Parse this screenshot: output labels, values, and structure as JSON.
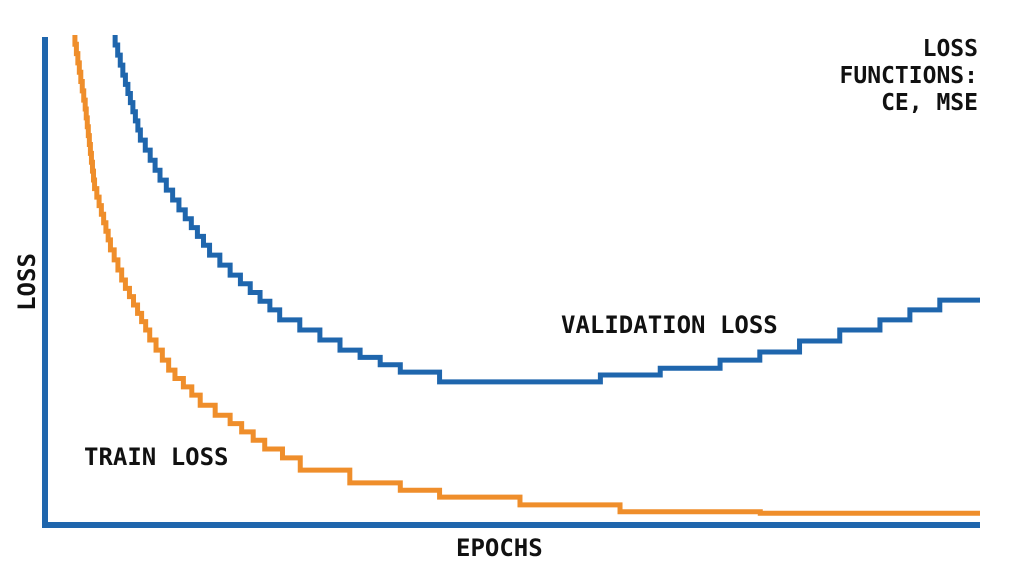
{
  "chart_data": {
    "type": "line",
    "title": "",
    "annotation": "LOSS FUNCTIONS: CE, MSE",
    "xlabel": "EPOCHS",
    "ylabel": "LOSS",
    "xlim": [
      0,
      100
    ],
    "ylim": [
      0,
      1
    ],
    "grid": false,
    "legend": "inline labels",
    "line_style": "step",
    "series": [
      {
        "name": "TRAIN LOSS",
        "color": "#ef8e2b",
        "x": [
          3.2,
          4.3,
          5.3,
          7.0,
          8.6,
          11.2,
          13.9,
          16.6,
          19.8,
          23.5,
          27.3,
          32.6,
          38.0,
          42.2,
          50.8,
          61.5,
          76.5,
          100
        ],
        "y": [
          1.0,
          0.867,
          0.704,
          0.582,
          0.5,
          0.398,
          0.316,
          0.265,
          0.224,
          0.173,
          0.137,
          0.112,
          0.086,
          0.071,
          0.057,
          0.041,
          0.027,
          0.024
        ]
      },
      {
        "name": "VALIDATION LOSS",
        "color": "#1f66ad",
        "x": [
          7.5,
          8.6,
          10.2,
          12.3,
          15.0,
          17.6,
          20.9,
          25.1,
          29.4,
          33.7,
          38.0,
          42.2,
          48.7,
          59.4,
          65.8,
          72.2,
          80.7,
          89.3,
          95.7,
          100
        ],
        "y": [
          1.0,
          0.918,
          0.806,
          0.724,
          0.643,
          0.571,
          0.51,
          0.439,
          0.398,
          0.357,
          0.327,
          0.312,
          0.292,
          0.292,
          0.306,
          0.32,
          0.353,
          0.398,
          0.439,
          0.459
        ]
      }
    ],
    "axis_color": "#1f66ad"
  }
}
